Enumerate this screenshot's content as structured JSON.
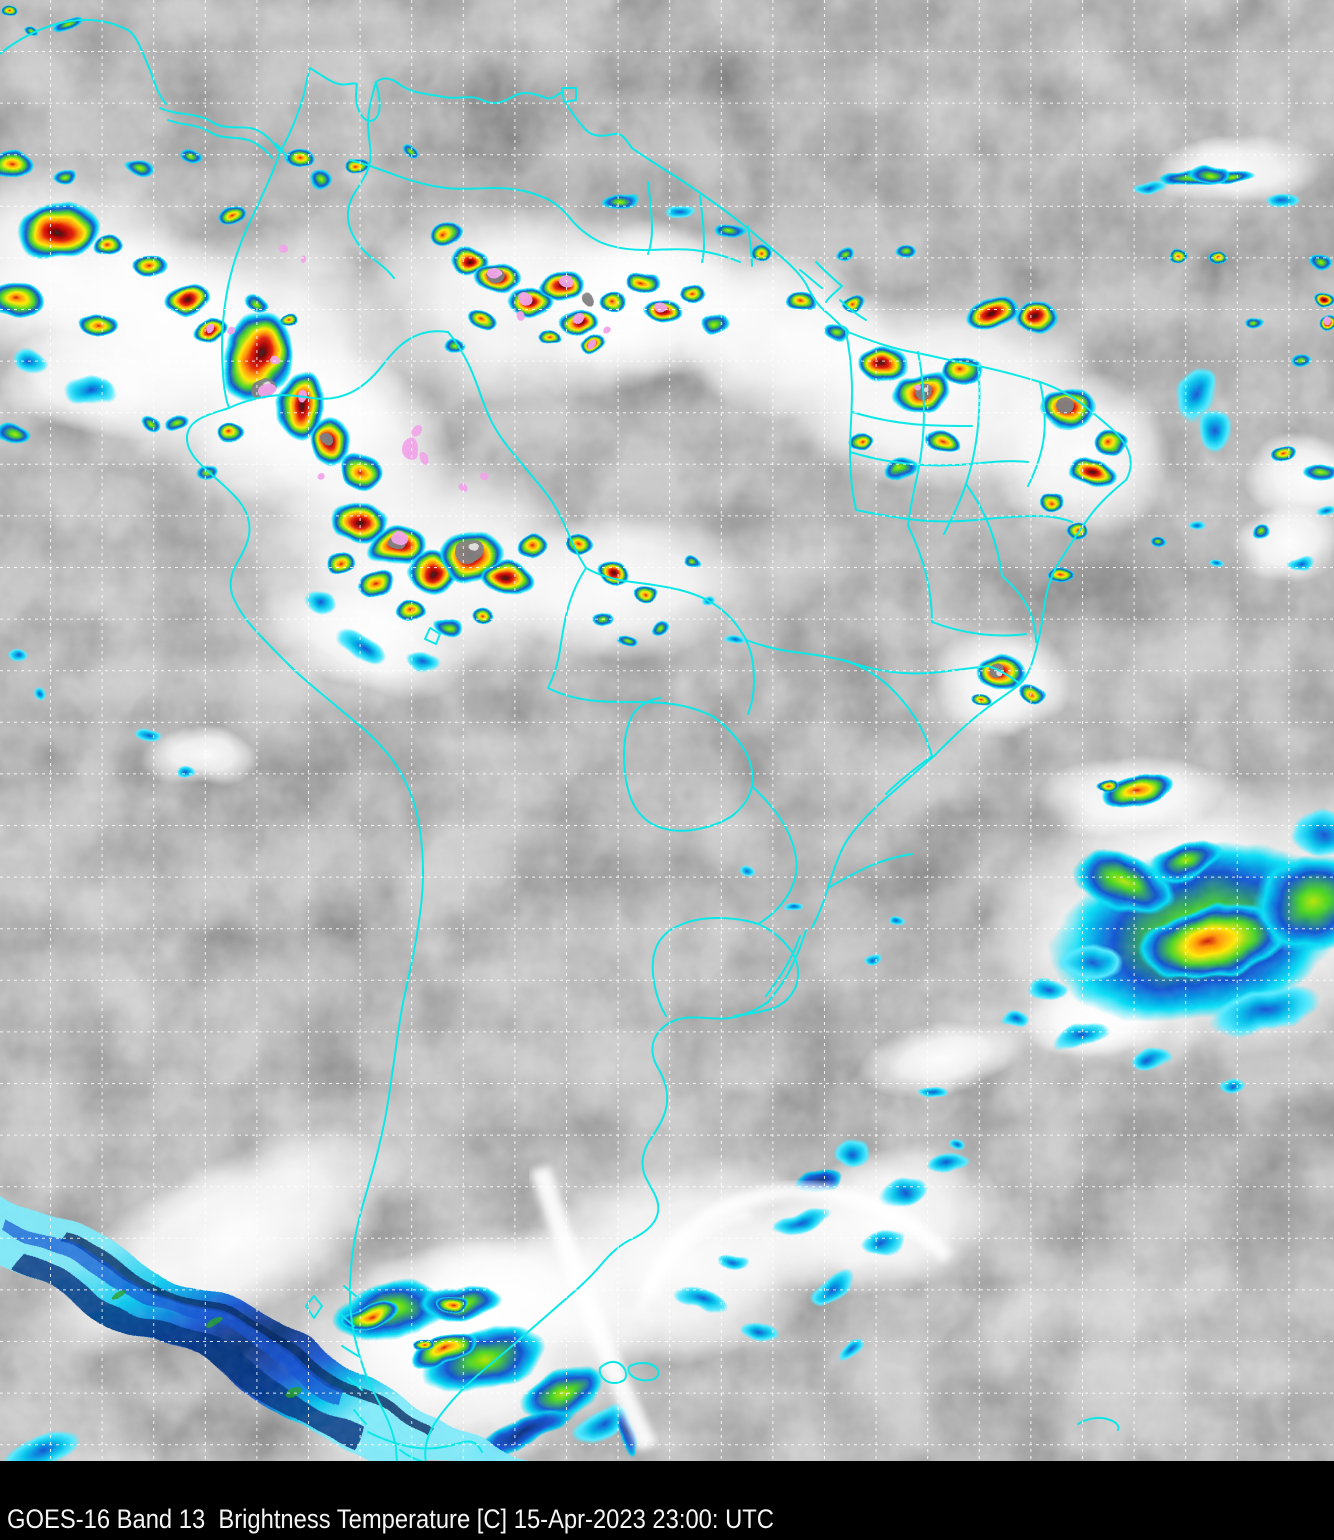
{
  "caption": {
    "text": "GOES-16 Band 13  Brightness Temperature [C] 15-Apr-2023 23:00: UTC",
    "satellite": "GOES-16",
    "band": "Band 13",
    "product": "Brightness Temperature",
    "units": "[C]",
    "datetime": "15-Apr-2023 23:00: UTC"
  },
  "palette": {
    "background_gray": "#8e8e8e",
    "cloud_white": "#ffffff",
    "cold_cyan": "#00dcf5",
    "cold_blue": "#0a4fd0",
    "cold_navy": "#062c74",
    "cold_green": "#46d41e",
    "cold_yellowgreen": "#b4e400",
    "cold_yellow": "#ffe800",
    "cold_orange": "#ff9000",
    "cold_red": "#e01800",
    "cold_darkred": "#5e0000",
    "cold_black": "#242424",
    "overshoot_gray": "#7c7c7c",
    "coldest_pink": "#f0a0e8"
  },
  "overlay": {
    "border_color": "#00e6e6",
    "grid_color": "#ffffff",
    "caption_bg": "#000000",
    "caption_fg": "#f5f5f5"
  }
}
